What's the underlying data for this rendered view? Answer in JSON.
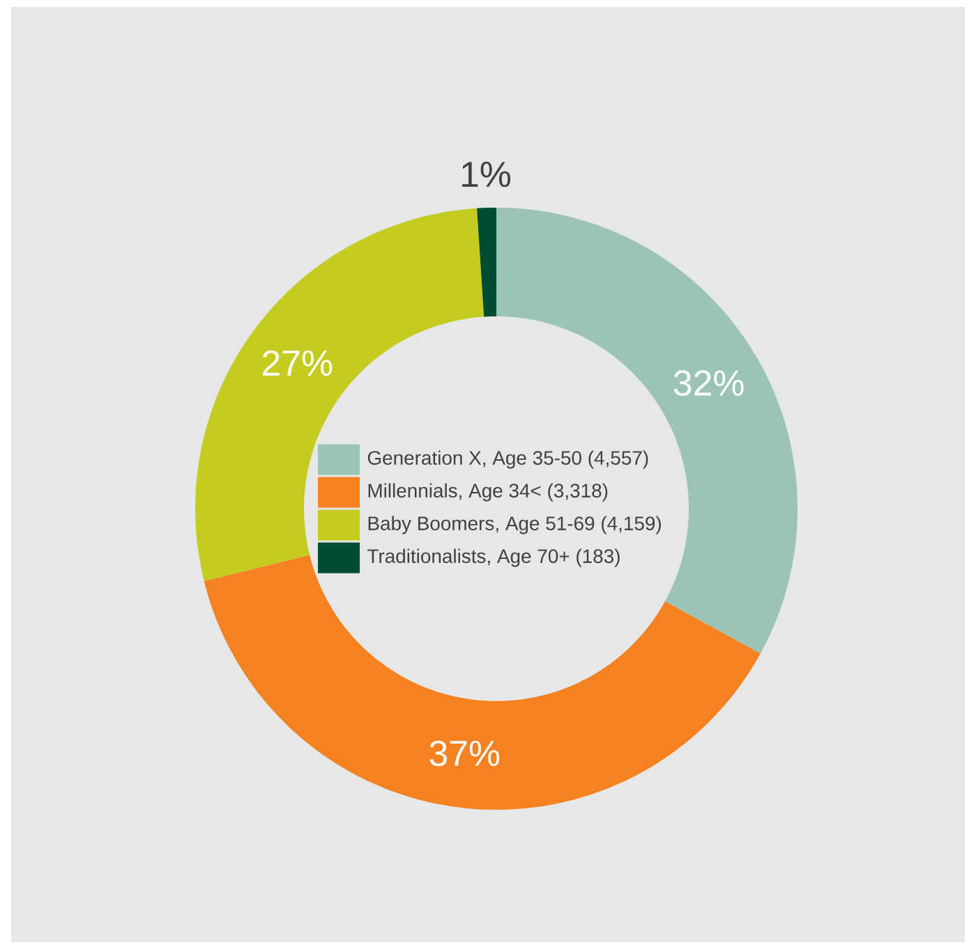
{
  "chart_data": {
    "type": "donut",
    "categories": [
      "Generation X, Age 35-50 (4,557)",
      "Millennials, Age 34< (3,318)",
      "Baby Boomers, Age 51-69 (4,159)",
      "Traditionalists, Age 70+ (183)"
    ],
    "values": [
      32,
      37,
      27,
      1
    ],
    "colors": [
      "#9cc3b8",
      "#f58220",
      "#c4cd1f",
      "#004d32"
    ],
    "value_labels": [
      "32%",
      "37%",
      "27%",
      "1%"
    ],
    "legend": "center"
  }
}
